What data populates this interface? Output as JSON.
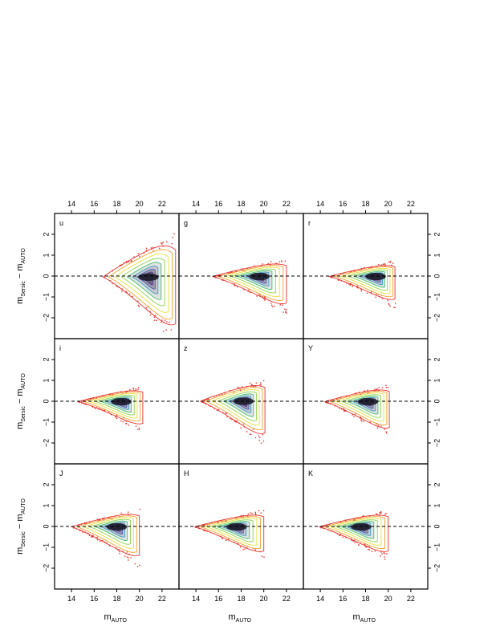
{
  "chart_data": {
    "type": "scatter",
    "description_grid": "3x3",
    "x_axis": {
      "label_main": "m",
      "label_sub": "AUTO",
      "range": [
        12.5,
        23.5
      ],
      "ticks": [
        14,
        16,
        18,
        20,
        22
      ]
    },
    "y_axis": {
      "label_main_1": "m",
      "label_sub_1": "Sersic",
      "label_mid": " − m",
      "label_main_2": "",
      "label_sub_2": "AUTO",
      "range": [
        -3.0,
        3.0
      ],
      "ticks": [
        -2,
        -1,
        0,
        1,
        2
      ],
      "tick_labels": [
        "−2",
        "−1",
        "0",
        "1",
        "2"
      ]
    },
    "reference_line": {
      "y": 0,
      "style": "dashed"
    },
    "contour_colors": [
      "#e8322f",
      "#f2a12c",
      "#e7df3a",
      "#8fd24a",
      "#3fbf6b",
      "#3aa0c8",
      "#4a5fb8",
      "#5a3e8a"
    ],
    "core_color": "#1c1c2a",
    "panels": [
      {
        "band": "u",
        "center_x": 20.8,
        "x_min": 16.5,
        "x_max": 23.2,
        "y_up": 2.0,
        "y_down": 2.8,
        "core_x": 20.8,
        "core_y": -0.05,
        "tip_x": 16.8
      },
      {
        "band": "g",
        "center_x": 19.8,
        "x_min": 15.3,
        "x_max": 22.0,
        "y_up": 0.8,
        "y_down": 1.6,
        "core_x": 19.6,
        "core_y": -0.02,
        "tip_x": 15.5
      },
      {
        "band": "r",
        "center_x": 19.0,
        "x_min": 14.6,
        "x_max": 20.6,
        "y_up": 0.7,
        "y_down": 1.35,
        "core_x": 18.9,
        "core_y": -0.02,
        "tip_x": 14.8
      },
      {
        "band": "i",
        "center_x": 18.6,
        "x_min": 14.4,
        "x_max": 20.3,
        "y_up": 0.7,
        "y_down": 1.3,
        "core_x": 18.4,
        "core_y": -0.02,
        "tip_x": 14.6
      },
      {
        "band": "z",
        "center_x": 18.3,
        "x_min": 14.2,
        "x_max": 20.1,
        "y_up": 1.0,
        "y_down": 1.9,
        "core_x": 18.2,
        "core_y": 0.0,
        "tip_x": 14.4
      },
      {
        "band": "Y",
        "center_x": 18.4,
        "x_min": 14.2,
        "x_max": 20.1,
        "y_up": 0.75,
        "y_down": 1.55,
        "core_x": 18.2,
        "core_y": -0.02,
        "tip_x": 14.4
      },
      {
        "band": "J",
        "center_x": 18.0,
        "x_min": 13.8,
        "x_max": 20.0,
        "y_up": 0.8,
        "y_down": 1.7,
        "core_x": 18.0,
        "core_y": -0.02,
        "tip_x": 14.0
      },
      {
        "band": "H",
        "center_x": 17.6,
        "x_min": 13.7,
        "x_max": 20.0,
        "y_up": 0.75,
        "y_down": 1.45,
        "core_x": 17.6,
        "core_y": -0.02,
        "tip_x": 13.9
      },
      {
        "band": "K",
        "center_x": 17.6,
        "x_min": 13.7,
        "x_max": 20.0,
        "y_up": 0.75,
        "y_down": 1.45,
        "core_x": 17.6,
        "core_y": -0.02,
        "tip_x": 13.9
      }
    ]
  }
}
